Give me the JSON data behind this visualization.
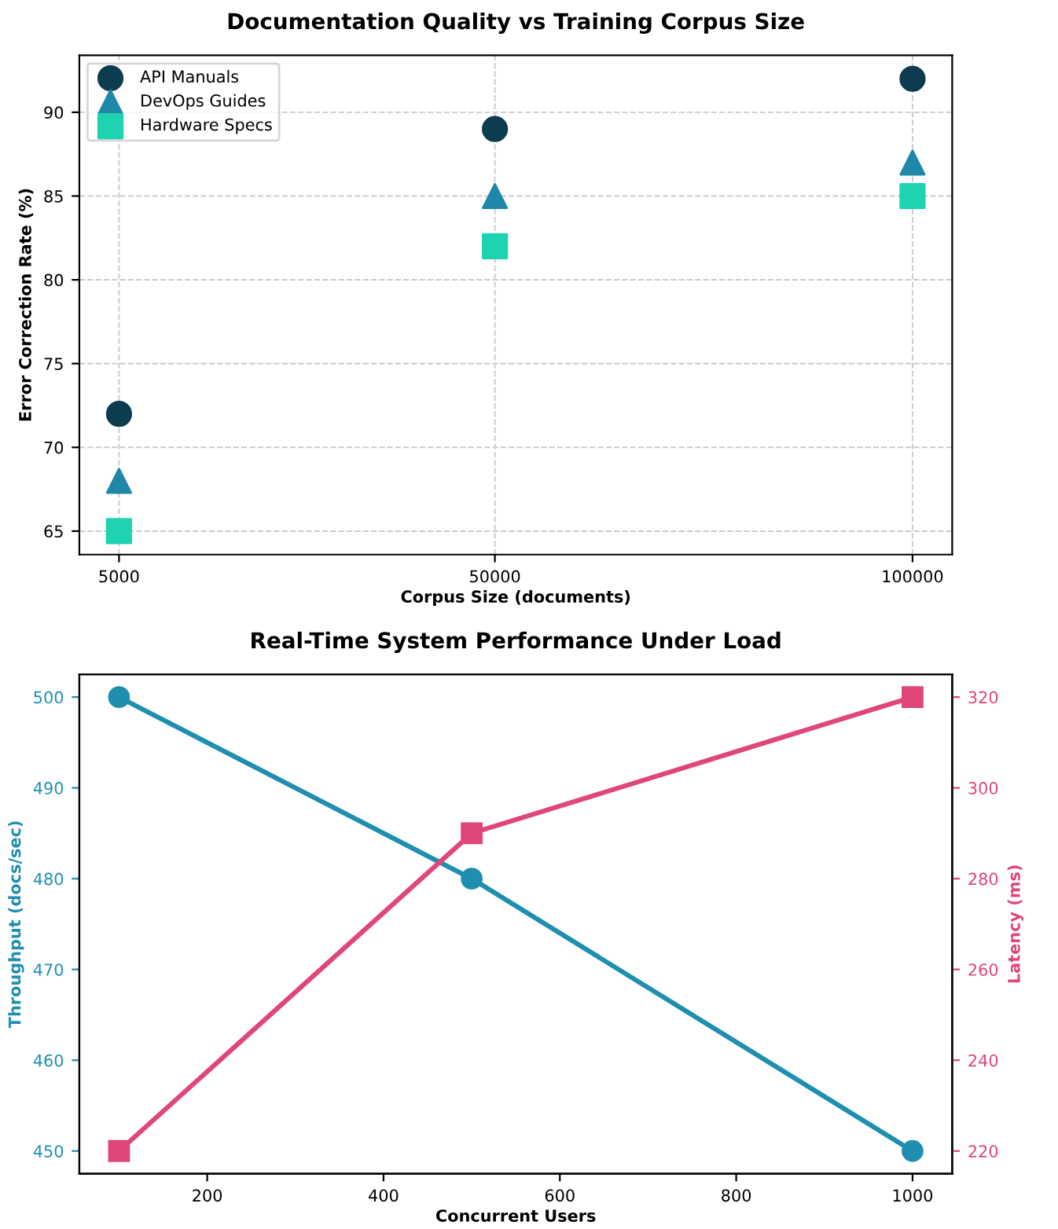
{
  "chart_data": [
    {
      "type": "scatter",
      "title": "Documentation Quality vs Training Corpus Size",
      "xlabel": "Corpus Size (documents)",
      "ylabel": "Error Correction Rate (%)",
      "x": [
        5000,
        50000,
        100000
      ],
      "series": [
        {
          "name": "API Manuals",
          "color": "#0d3b4f",
          "marker": "circle",
          "values": [
            72,
            89,
            92
          ]
        },
        {
          "name": "DevOps Guides",
          "color": "#1f87a8",
          "marker": "triangle",
          "values": [
            68,
            85,
            87
          ]
        },
        {
          "name": "Hardware Specs",
          "color": "#1dd3b0",
          "marker": "square",
          "values": [
            65,
            82,
            85
          ]
        }
      ],
      "xlim": [
        250,
        104750
      ],
      "xticks": [
        5000,
        50000,
        100000
      ],
      "ylim": [
        63.6,
        93.4
      ],
      "yticks": [
        65,
        70,
        75,
        80,
        85,
        90
      ],
      "grid": true,
      "legend": "top left"
    },
    {
      "type": "line",
      "title": "Real-Time System Performance Under Load",
      "xlabel": "Concurrent Users",
      "ylabel": "Throughput (docs/sec)",
      "y2label": "Latency (ms)",
      "x": [
        100,
        500,
        1000
      ],
      "series": [
        {
          "color": "#1f8fb0",
          "marker": "circle",
          "values": [
            500,
            480,
            450
          ]
        },
        {
          "color": "#e0457b",
          "marker": "square",
          "axis": "y2",
          "values": [
            220,
            290,
            320
          ]
        }
      ],
      "xlim": [
        55,
        1045
      ],
      "xticks": [
        200,
        400,
        600,
        800,
        1000
      ],
      "ylim": [
        447.5,
        502.5
      ],
      "yticks": [
        450,
        460,
        470,
        480,
        490,
        500
      ],
      "y2lim": [
        215,
        325
      ],
      "y2ticks": [
        220,
        240,
        260,
        280,
        300,
        320
      ],
      "grid": false,
      "legend": false,
      "line_style": "solid"
    }
  ]
}
